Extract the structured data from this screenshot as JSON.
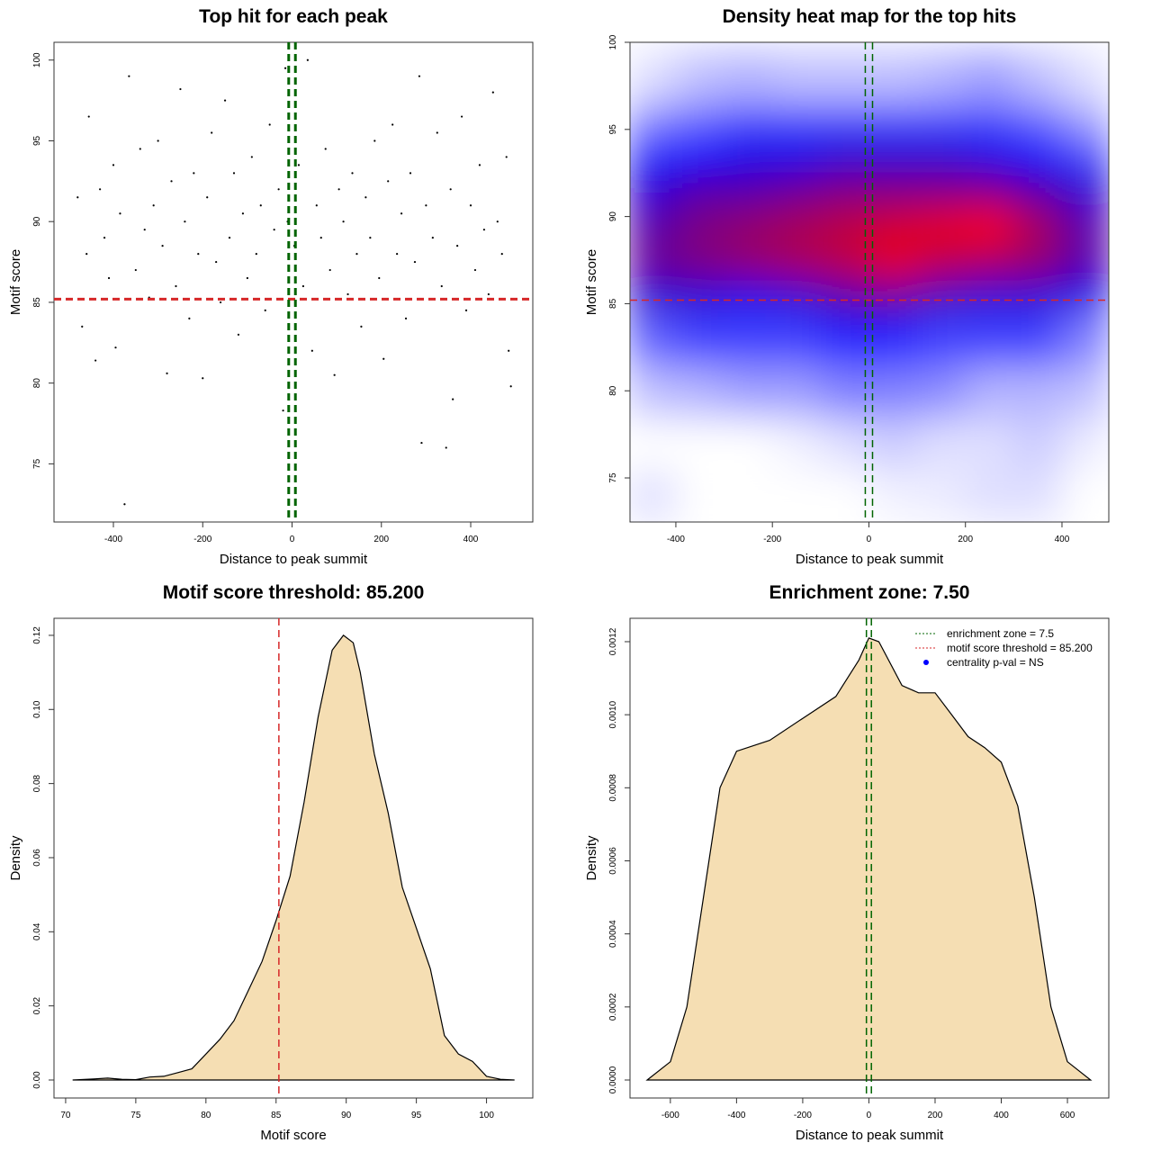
{
  "chart_data": [
    {
      "type": "scatter",
      "title": "Top hit for each peak",
      "xlabel": "Distance to peak summit",
      "ylabel": "Motif score",
      "x": [
        -480,
        -470,
        -460,
        -455,
        -440,
        -430,
        -420,
        -410,
        -400,
        -395,
        -385,
        -375,
        -365,
        -350,
        -340,
        -330,
        -320,
        -310,
        -300,
        -290,
        -280,
        -270,
        -260,
        -250,
        -240,
        -230,
        -220,
        -210,
        -200,
        -190,
        -180,
        -170,
        -160,
        -150,
        -140,
        -130,
        -120,
        -110,
        -100,
        -90,
        -80,
        -70,
        -60,
        -50,
        -40,
        -30,
        -20,
        -10,
        5,
        15,
        25,
        35,
        45,
        55,
        65,
        75,
        85,
        95,
        105,
        115,
        125,
        135,
        145,
        155,
        165,
        175,
        185,
        195,
        205,
        215,
        225,
        235,
        245,
        255,
        265,
        275,
        285,
        290,
        300,
        315,
        325,
        335,
        345,
        355,
        360,
        370,
        380,
        390,
        400,
        410,
        420,
        430,
        440,
        450,
        460,
        470,
        480,
        485,
        490,
        -15
      ],
      "y": [
        91.5,
        83.5,
        88,
        96.5,
        81.4,
        92,
        89,
        86.5,
        93.5,
        82.2,
        90.5,
        72.5,
        99,
        87,
        94.5,
        89.5,
        85.3,
        91,
        95,
        88.5,
        80.6,
        92.5,
        86,
        98.2,
        90,
        84,
        93,
        88,
        80.3,
        91.5,
        95.5,
        87.5,
        85,
        97.5,
        89,
        93,
        83,
        90.5,
        86.5,
        94,
        88,
        91,
        84.5,
        96,
        89.5,
        92,
        78.3,
        90,
        88.5,
        93.5,
        86,
        100,
        82,
        91,
        89,
        94.5,
        87,
        80.5,
        92,
        90,
        85.5,
        93,
        88,
        83.5,
        91.5,
        89,
        95,
        86.5,
        81.5,
        92.5,
        96,
        88,
        90.5,
        84,
        93,
        87.5,
        99,
        76.3,
        91,
        89,
        95.5,
        86,
        76,
        92,
        79,
        88.5,
        96.5,
        84.5,
        91,
        87,
        93.5,
        89.5,
        85.5,
        98,
        90,
        88,
        94,
        82,
        79.8,
        99.5
      ],
      "color": "#000000",
      "xlim": [
        -533,
        539
      ],
      "ylim": [
        71.4,
        101.1
      ],
      "xticks": [
        -400,
        -200,
        0,
        200,
        400
      ],
      "yticks": [
        75,
        80,
        85,
        90,
        95,
        100
      ],
      "vlines": [
        -7.5,
        7.5
      ],
      "vline_color": "#006400",
      "hline": 85.2,
      "hline_color": "#d62728"
    },
    {
      "type": "heatmap",
      "title": "Density heat map for the top hits",
      "xlabel": "Distance to peak summit",
      "ylabel": "Motif score",
      "x": [
        -450,
        -350,
        -250,
        -150,
        -50,
        50,
        150,
        250,
        350,
        450
      ],
      "y": [
        74,
        77,
        80,
        83,
        86,
        88,
        90,
        92,
        94,
        96,
        98
      ],
      "z": [
        [
          0.05,
          0,
          0,
          0,
          0,
          0.02,
          0.03,
          0.05,
          0.05,
          0
        ],
        [
          0,
          0,
          0,
          0.02,
          0.05,
          0.08,
          0.05,
          0.05,
          0.08,
          0.03
        ],
        [
          0.1,
          0.12,
          0.15,
          0.15,
          0.2,
          0.2,
          0.18,
          0.12,
          0.12,
          0.1
        ],
        [
          0.25,
          0.3,
          0.3,
          0.3,
          0.35,
          0.35,
          0.3,
          0.3,
          0.3,
          0.2
        ],
        [
          0.5,
          0.5,
          0.45,
          0.5,
          0.6,
          0.65,
          0.55,
          0.5,
          0.5,
          0.45
        ],
        [
          0.65,
          0.7,
          0.75,
          0.8,
          0.85,
          0.95,
          0.85,
          0.8,
          0.75,
          0.6
        ],
        [
          0.6,
          0.7,
          0.75,
          0.8,
          0.85,
          0.9,
          0.95,
          1.0,
          0.8,
          0.6
        ],
        [
          0.5,
          0.6,
          0.6,
          0.65,
          0.7,
          0.7,
          0.7,
          0.7,
          0.6,
          0.5
        ],
        [
          0.35,
          0.4,
          0.45,
          0.45,
          0.5,
          0.5,
          0.5,
          0.45,
          0.4,
          0.3
        ],
        [
          0.2,
          0.25,
          0.3,
          0.3,
          0.3,
          0.3,
          0.3,
          0.3,
          0.25,
          0.15
        ],
        [
          0.05,
          0.1,
          0.12,
          0.1,
          0.1,
          0.1,
          0.12,
          0.15,
          0.1,
          0.05
        ]
      ],
      "xlim": [
        -495,
        497
      ],
      "ylim": [
        72.47,
        100
      ],
      "xticks": [
        -400,
        -200,
        0,
        200,
        400
      ],
      "yticks": [
        75,
        80,
        85,
        90,
        95,
        100
      ],
      "vlines": [
        -7.5,
        7.5
      ],
      "vline_color": "#006400",
      "hline": 85.2,
      "hline_color": "#d62728"
    },
    {
      "type": "area",
      "title": "Motif score threshold: 85.200",
      "xlabel": "Motif score",
      "ylabel": "Density",
      "x": [
        70.5,
        72,
        73,
        74,
        75,
        76,
        77,
        78,
        79,
        80,
        81,
        82,
        83,
        84,
        85,
        86,
        87,
        88,
        89,
        89.8,
        90.5,
        91,
        92,
        93,
        94,
        95,
        96,
        97,
        98,
        99,
        100,
        101,
        102
      ],
      "y": [
        0,
        0.0003,
        0.0005,
        0.0002,
        0.0001,
        0.0008,
        0.001,
        0.002,
        0.003,
        0.007,
        0.011,
        0.016,
        0.024,
        0.032,
        0.043,
        0.055,
        0.075,
        0.098,
        0.116,
        0.12,
        0.118,
        0.11,
        0.088,
        0.072,
        0.052,
        0.041,
        0.03,
        0.012,
        0.007,
        0.005,
        0.001,
        0.0002,
        0
      ],
      "color": "#f5deb3",
      "xlim": [
        69.17,
        103.3
      ],
      "ylim": [
        -0.00486,
        0.1246
      ],
      "xticks": [
        70,
        75,
        80,
        85,
        90,
        95,
        100
      ],
      "yticks": [
        {
          "value": 0,
          "label": "0.00"
        },
        {
          "value": 0.02,
          "label": "0.02"
        },
        {
          "value": 0.04,
          "label": "0.04"
        },
        {
          "value": 0.06,
          "label": "0.06"
        },
        {
          "value": 0.08,
          "label": "0.08"
        },
        {
          "value": 0.1,
          "label": "0.10"
        },
        {
          "value": 0.12,
          "label": "0.12"
        }
      ],
      "vlines": [
        85.2
      ],
      "vline_color": "#d62728"
    },
    {
      "type": "area",
      "title": "Enrichment zone: 7.50",
      "xlabel": "Distance to peak summit",
      "ylabel": "Density",
      "x": [
        -670,
        -600,
        -550,
        -500,
        -450,
        -400,
        -300,
        -200,
        -100,
        -30,
        0,
        30,
        100,
        150,
        200,
        250,
        300,
        350,
        400,
        450,
        500,
        550,
        600,
        670
      ],
      "y": [
        0,
        5e-05,
        0.0002,
        0.0005,
        0.0008,
        0.0009,
        0.00093,
        0.00099,
        0.00105,
        0.00115,
        0.00121,
        0.0012,
        0.00108,
        0.00106,
        0.00106,
        0.001,
        0.00094,
        0.00091,
        0.00087,
        0.00075,
        0.0005,
        0.0002,
        5e-05,
        0
      ],
      "color": "#f5deb3",
      "xlim": [
        -722,
        725
      ],
      "ylim": [
        -4.93e-05,
        0.001264
      ],
      "xticks": [
        -600,
        -400,
        -200,
        0,
        200,
        400,
        600
      ],
      "yticks": [
        {
          "value": 0,
          "label": "0.0000"
        },
        {
          "value": 0.0002,
          "label": "0.0002"
        },
        {
          "value": 0.0004,
          "label": "0.0004"
        },
        {
          "value": 0.0006,
          "label": "0.0006"
        },
        {
          "value": 0.0008,
          "label": "0.0008"
        },
        {
          "value": 0.001,
          "label": "0.0010"
        },
        {
          "value": 0.0012,
          "label": "0.0012"
        }
      ],
      "vlines": [
        -7.5,
        7.5
      ],
      "vline_color": "#006400",
      "legend_position": "topright",
      "legend": [
        {
          "label": "enrichment zone = 7.5",
          "color": "#006400",
          "marker": "line"
        },
        {
          "label": "motif score threshold = 85.200",
          "color": "#d62728",
          "marker": "line"
        },
        {
          "label": "centrality p-val = NS",
          "color": "#0000ff",
          "marker": "point"
        }
      ]
    }
  ]
}
